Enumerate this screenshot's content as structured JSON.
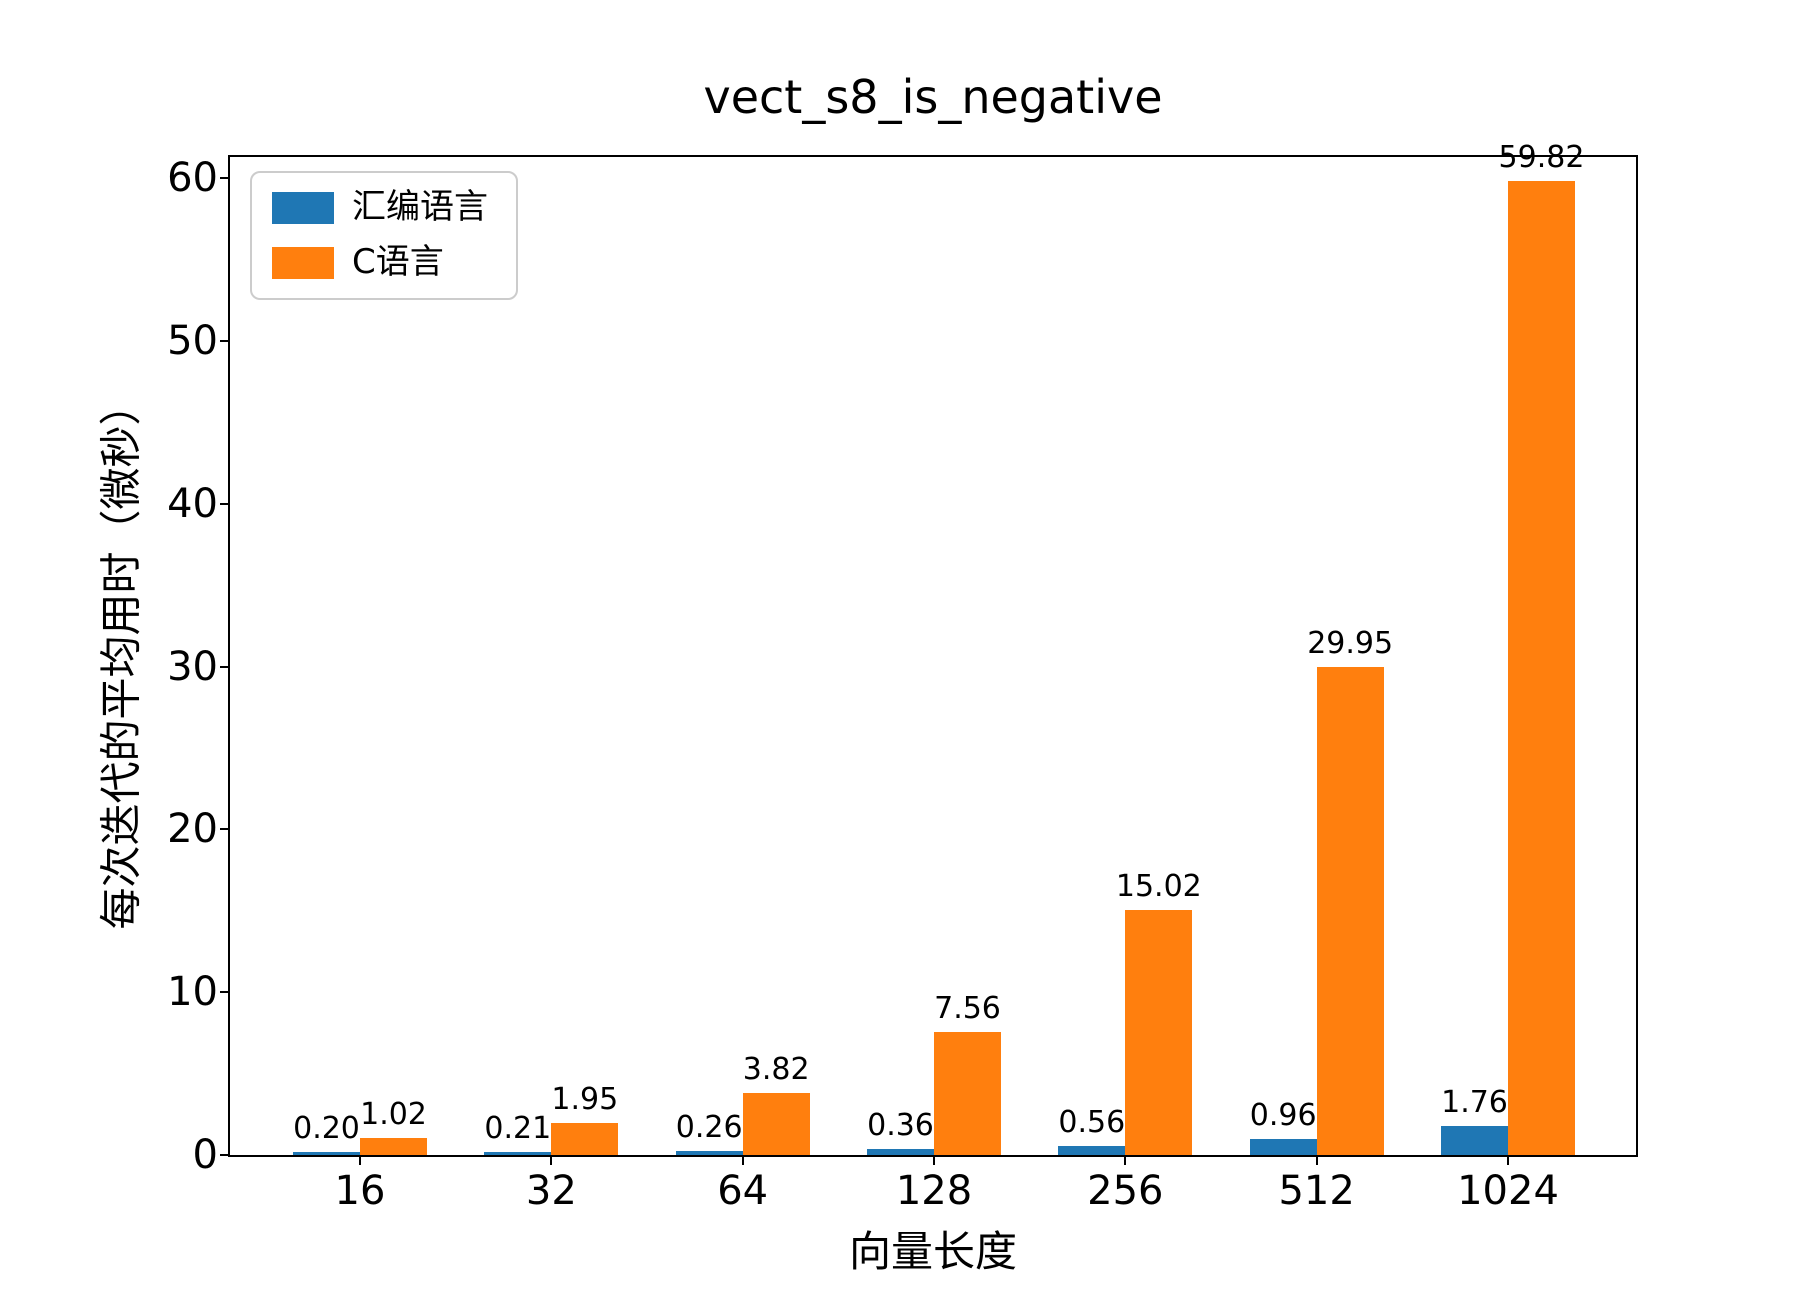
{
  "figure": {
    "background": "#ffffff",
    "text_color": "#000000"
  },
  "chart_data": {
    "type": "bar",
    "title": "vect_s8_is_negative",
    "xlabel": "向量长度",
    "ylabel": "每次迭代的平均用时（微秒）",
    "categories": [
      "16",
      "32",
      "64",
      "128",
      "256",
      "512",
      "1024"
    ],
    "series": [
      {
        "name": "汇编语言",
        "color": "#1f77b4",
        "values": [
          0.2,
          0.21,
          0.26,
          0.36,
          0.56,
          0.96,
          1.76
        ],
        "labels": [
          "0.20",
          "0.21",
          "0.26",
          "0.36",
          "0.56",
          "0.96",
          "1.76"
        ]
      },
      {
        "name": "C语言",
        "color": "#ff7f0e",
        "values": [
          1.02,
          1.95,
          3.82,
          7.56,
          15.02,
          29.95,
          59.82
        ],
        "labels": [
          "1.02",
          "1.95",
          "3.82",
          "7.56",
          "15.02",
          "29.95",
          "59.82"
        ]
      }
    ],
    "yticks": [
      0,
      10,
      20,
      30,
      40,
      50,
      60
    ],
    "ylim": [
      0,
      61.3
    ],
    "grid": false,
    "legend_position": "upper left",
    "bar_value_labels": true
  }
}
